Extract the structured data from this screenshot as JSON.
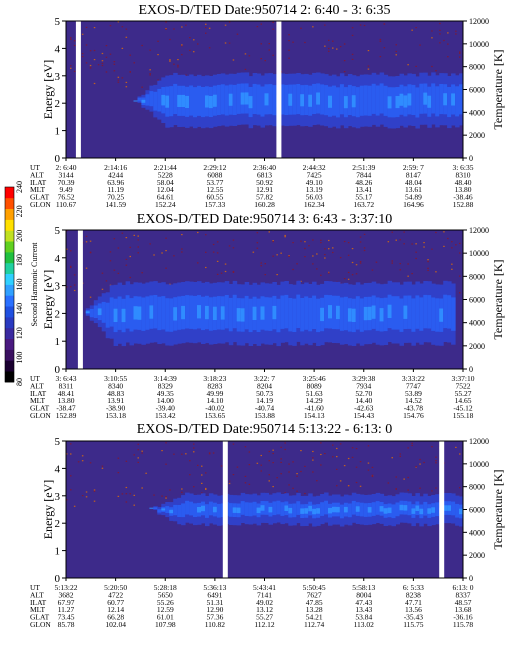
{
  "chart_data": [
    {
      "type": "heatmap",
      "title": "EXOS-D/TED   Date:950714  2: 6:40 - 3: 6:35",
      "ylabel": "Energy [eV]",
      "y2label": "Temperature [K]",
      "ylim": [
        0,
        5
      ],
      "y2lim": [
        0,
        12000
      ],
      "yticks": [
        "0",
        "1",
        "2",
        "3",
        "4",
        "5"
      ],
      "y2ticks": [
        "0",
        "2000",
        "4000",
        "6000",
        "8000",
        "10000",
        "12000"
      ],
      "gaps": [
        0.03,
        0.535
      ],
      "band": {
        "center": 2.1,
        "inner": 0.55,
        "outer": 0.95,
        "start": 0.17,
        "end": 1.0
      },
      "ephemeris": {
        "labels": [
          "UT",
          "ALT",
          "ILAT",
          "MLT",
          "GLAT",
          "GLON"
        ],
        "columns": [
          [
            "2: 6:40",
            "3144",
            "70.39",
            "9.49",
            "76.52",
            "110.67"
          ],
          [
            "2:14:16",
            "4244",
            "63.96",
            "11.19",
            "70.25",
            "141.59"
          ],
          [
            "2:21:44",
            "5228",
            "58.04",
            "12.04",
            "64.61",
            "152.24"
          ],
          [
            "2:29:12",
            "6088",
            "53.77",
            "12.55",
            "60.55",
            "157.33"
          ],
          [
            "2:36:40",
            "6813",
            "50.92",
            "12.91",
            "57.82",
            "160.28"
          ],
          [
            "2:44:32",
            "7425",
            "49.10",
            "13.19",
            "56.03",
            "162.34"
          ],
          [
            "2:51:39",
            "7844",
            "48.26",
            "13.41",
            "55.17",
            "163.72"
          ],
          [
            "2:59: 7",
            "8147",
            "48.04",
            "13.61",
            "54.89",
            "164.96"
          ],
          [
            "3: 6:35",
            "8310",
            "48.40",
            "13.80",
            "-38.46",
            "152.88"
          ]
        ]
      }
    },
    {
      "type": "heatmap",
      "title": "EXOS-D/TED   Date:950714  3: 6:43 - 3:37:10",
      "ylabel": "Energy [eV]",
      "y2label": "Temperature [K]",
      "ylim": [
        0,
        5
      ],
      "y2lim": [
        0,
        12000
      ],
      "yticks": [
        "0",
        "1",
        "2",
        "3",
        "4",
        "5"
      ],
      "y2ticks": [
        "0",
        "2000",
        "4000",
        "6000",
        "8000",
        "10000",
        "12000"
      ],
      "gaps": [
        0.035
      ],
      "band": {
        "center": 2.0,
        "inner": 0.6,
        "outer": 1.1,
        "start": 0.04,
        "end": 0.97
      },
      "ephemeris": {
        "labels": [
          "UT",
          "ALT",
          "ILAT",
          "MLT",
          "GLAT",
          "GLON"
        ],
        "columns": [
          [
            "3: 6:43",
            "8311",
            "48.41",
            "13.80",
            "-38.47",
            "152.89"
          ],
          [
            "3:10:55",
            "8340",
            "48.83",
            "13.91",
            "-38.90",
            "153.18"
          ],
          [
            "3:14:39",
            "8329",
            "49.35",
            "14.00",
            "-39.40",
            "153.42"
          ],
          [
            "3:18:23",
            "8283",
            "49.99",
            "14.10",
            "-40.02",
            "153.65"
          ],
          [
            "3:22: 7",
            "8204",
            "50.73",
            "14.19",
            "-40.74",
            "153.88"
          ],
          [
            "3:25:46",
            "8089",
            "51.63",
            "14.29",
            "-41.60",
            "154.13"
          ],
          [
            "3:29:38",
            "7934",
            "52.70",
            "14.40",
            "-42.63",
            "154.43"
          ],
          [
            "3:33:22",
            "7747",
            "53.89",
            "14.52",
            "-43.78",
            "154.76"
          ],
          [
            "3:37:10",
            "7522",
            "55.27",
            "14.65",
            "-45.12",
            "155.18"
          ]
        ]
      }
    },
    {
      "type": "heatmap",
      "title": "EXOS-D/TED   Date:950714  5:13:22 - 6:13: 0",
      "ylabel": "Energy [eV]",
      "y2label": "Temperature [K]",
      "ylim": [
        0,
        5
      ],
      "y2lim": [
        0,
        12000
      ],
      "yticks": [
        "0",
        "1",
        "2",
        "3",
        "4",
        "5"
      ],
      "y2ticks": [
        "0",
        "2000",
        "4000",
        "6000",
        "8000",
        "10000",
        "12000"
      ],
      "gaps": [
        0.4,
        0.945
      ],
      "band": {
        "center": 2.5,
        "inner": 0.25,
        "outer": 0.55,
        "start": 0.21,
        "end": 1.0
      },
      "ephemeris": {
        "labels": [
          "UT",
          "ALT",
          "ILAT",
          "MLT",
          "GLAT",
          "GLON"
        ],
        "columns": [
          [
            "5:13:22",
            "3682",
            "67.97",
            "11.27",
            "73.45",
            "85.78"
          ],
          [
            "5:20:50",
            "4722",
            "60.77",
            "12.14",
            "66.28",
            "102.04"
          ],
          [
            "5:28:18",
            "5650",
            "55.26",
            "12.59",
            "61.01",
            "107.98"
          ],
          [
            "5:36:13",
            "6491",
            "51.31",
            "12.90",
            "57.36",
            "110.82"
          ],
          [
            "5:43:41",
            "7141",
            "49.02",
            "13.12",
            "55.27",
            "112.12"
          ],
          [
            "5:50:45",
            "7627",
            "47.85",
            "13.28",
            "54.21",
            "112.74"
          ],
          [
            "5:58:13",
            "8004",
            "47.43",
            "13.43",
            "53.84",
            "113.02"
          ],
          [
            "6: 5:33",
            "8238",
            "47.71",
            "13.56",
            "-35.43",
            "115.75"
          ],
          [
            "6:13: 0",
            "8337",
            "48.57",
            "13.68",
            "-36.16",
            "115.78"
          ]
        ]
      }
    }
  ],
  "colorbar": {
    "label": "Second Harmonic Current",
    "ticks": [
      "80",
      "100",
      "120",
      "140",
      "160",
      "180",
      "200",
      "220",
      "240"
    ],
    "colors": [
      "#000000",
      "#1a0030",
      "#3a1060",
      "#4a1a80",
      "#3a2aa0",
      "#2a3ac0",
      "#2050e0",
      "#2a70ff",
      "#30a0ff",
      "#30d0ff",
      "#20d0a0",
      "#20c040",
      "#60d020",
      "#c0e020",
      "#ffe000",
      "#ffa000",
      "#ff5000",
      "#ff0000"
    ]
  }
}
